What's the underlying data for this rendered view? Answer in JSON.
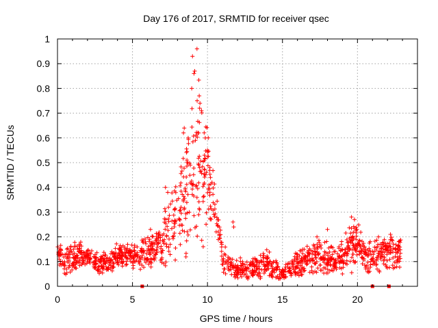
{
  "chart_data": {
    "type": "scatter",
    "title": "Day 176 of 2017, SRMTID for receiver qsec",
    "xlabel": "GPS time / hours",
    "ylabel": "SRMTID / TECUs",
    "xlim": [
      0,
      24
    ],
    "ylim": [
      0,
      1
    ],
    "x_ticks": [
      0,
      5,
      10,
      15,
      20
    ],
    "y_ticks": [
      0,
      0.1,
      0.2,
      0.3,
      0.4,
      0.5,
      0.6,
      0.7,
      0.8,
      0.9,
      1
    ],
    "x_tick_labels": [
      "0",
      "5",
      "10",
      "15",
      "20"
    ],
    "y_tick_labels": [
      "0",
      "0.1",
      "0.2",
      "0.3",
      "0.4",
      "0.5",
      "0.6",
      "0.7",
      "0.8",
      "0.9",
      "1"
    ],
    "grid": true,
    "marker": "plus",
    "color": "#ff0000",
    "baseline_markers": {
      "marker": "square",
      "y": 0,
      "x": [
        5.65,
        21.0,
        22.1
      ]
    },
    "series": [
      {
        "name": "SRMTID",
        "envelope": {
          "x": [
            0,
            0.5,
            1,
            1.5,
            2,
            2.5,
            3,
            3.5,
            4,
            4.5,
            5,
            5.5,
            6,
            6.5,
            7,
            7.5,
            8,
            8.5,
            9,
            9.5,
            10,
            10.5,
            11,
            11.5,
            12,
            12.5,
            13,
            13.5,
            14,
            14.5,
            15,
            15.5,
            16,
            16.5,
            17,
            17.5,
            18,
            18.5,
            19,
            19.5,
            20,
            20.5,
            21,
            21.5,
            22,
            22.5,
            22.9
          ],
          "y": [
            0.14,
            0.1,
            0.12,
            0.13,
            0.12,
            0.1,
            0.09,
            0.1,
            0.12,
            0.13,
            0.12,
            0.12,
            0.15,
            0.14,
            0.18,
            0.24,
            0.28,
            0.34,
            0.45,
            0.5,
            0.42,
            0.32,
            0.12,
            0.08,
            0.07,
            0.07,
            0.07,
            0.08,
            0.09,
            0.07,
            0.05,
            0.07,
            0.09,
            0.1,
            0.11,
            0.12,
            0.12,
            0.11,
            0.12,
            0.15,
            0.17,
            0.13,
            0.11,
            0.13,
            0.14,
            0.13,
            0.14
          ],
          "spread": [
            0.04,
            0.04,
            0.04,
            0.04,
            0.03,
            0.03,
            0.03,
            0.03,
            0.04,
            0.04,
            0.04,
            0.04,
            0.05,
            0.05,
            0.08,
            0.11,
            0.14,
            0.17,
            0.22,
            0.25,
            0.16,
            0.11,
            0.05,
            0.03,
            0.03,
            0.03,
            0.03,
            0.04,
            0.04,
            0.03,
            0.02,
            0.03,
            0.04,
            0.04,
            0.05,
            0.05,
            0.05,
            0.05,
            0.05,
            0.07,
            0.07,
            0.05,
            0.05,
            0.05,
            0.05,
            0.05,
            0.04
          ]
        },
        "outliers": [
          {
            "x": 9.0,
            "y": 0.93
          },
          {
            "x": 9.3,
            "y": 0.96
          },
          {
            "x": 9.15,
            "y": 0.87
          },
          {
            "x": 9.1,
            "y": 0.86
          },
          {
            "x": 9.45,
            "y": 0.77
          },
          {
            "x": 9.5,
            "y": 0.74
          },
          {
            "x": 8.95,
            "y": 0.8
          },
          {
            "x": 9.6,
            "y": 0.71
          },
          {
            "x": 8.45,
            "y": 0.64
          },
          {
            "x": 8.4,
            "y": 0.62
          },
          {
            "x": 10.0,
            "y": 0.55
          },
          {
            "x": 10.05,
            "y": 0.6
          },
          {
            "x": 10.2,
            "y": 0.44
          },
          {
            "x": 10.3,
            "y": 0.42
          },
          {
            "x": 9.8,
            "y": 0.53
          },
          {
            "x": 7.2,
            "y": 0.4
          },
          {
            "x": 7.35,
            "y": 0.38
          },
          {
            "x": 11.7,
            "y": 0.26
          },
          {
            "x": 11.75,
            "y": 0.24
          },
          {
            "x": 19.6,
            "y": 0.28
          },
          {
            "x": 19.8,
            "y": 0.27
          },
          {
            "x": 18.0,
            "y": 0.23
          },
          {
            "x": 17.3,
            "y": 0.2
          },
          {
            "x": 22.2,
            "y": 0.21
          },
          {
            "x": 21.4,
            "y": 0.2
          },
          {
            "x": 6.2,
            "y": 0.23
          }
        ]
      }
    ]
  }
}
